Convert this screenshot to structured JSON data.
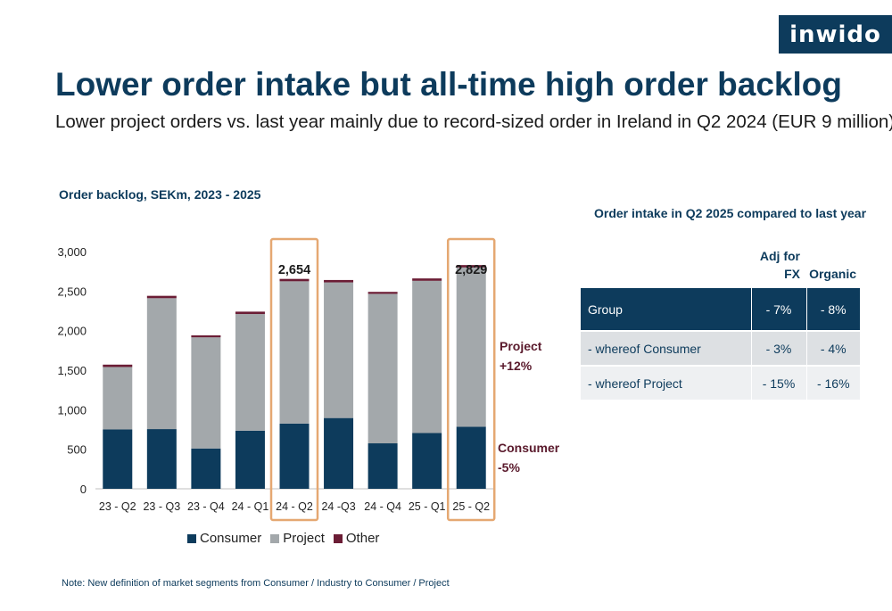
{
  "header": {
    "brand": "inwido",
    "title": "Lower order intake but all-time high order backlog",
    "subtitle": "Lower project orders vs. last year mainly due to record-sized order in Ireland in Q2 2024 (EUR 9 million)"
  },
  "colors": {
    "navy": "#0d3b5c",
    "project_gray": "#a3a8ab",
    "other_maroon": "#6b1d35",
    "highlight_orange": "#e5a872",
    "table_header": "#0d3b5c",
    "table_row_1": "#dde0e3",
    "table_row_2": "#eef0f2"
  },
  "chart_data": {
    "type": "bar",
    "stacked": true,
    "title": "Order backlog, SEKm, 2023 - 2025",
    "categories": [
      "23 - Q2",
      "23 - Q3",
      "23 - Q4",
      "24 - Q1",
      "24 - Q2",
      "24 -Q3",
      "24 - Q4",
      "25 - Q1",
      "25 - Q2"
    ],
    "series": [
      {
        "name": "Consumer",
        "color": "#0d3b5c",
        "values": [
          750,
          755,
          510,
          735,
          825,
          895,
          575,
          705,
          785
        ]
      },
      {
        "name": "Project",
        "color": "#a3a8ab",
        "values": [
          790,
          1655,
          1405,
          1475,
          1799,
          1715,
          1890,
          1925,
          2014
        ]
      },
      {
        "name": "Other",
        "color": "#6b1d35",
        "values": [
          30,
          30,
          25,
          30,
          30,
          30,
          25,
          30,
          30
        ]
      }
    ],
    "ylim": [
      0,
      3000
    ],
    "yticks": [
      0,
      500,
      1000,
      1500,
      2000,
      2500,
      3000
    ],
    "ytick_labels": [
      "0",
      "500",
      "1,000",
      "1,500",
      "2,000",
      "2,500",
      "3,000"
    ],
    "highlighted": [
      {
        "category": "24 - Q2",
        "label": "2,654"
      },
      {
        "category": "25 - Q2",
        "label": "2,829"
      }
    ],
    "annotations": [
      {
        "lines": [
          "Project",
          "+12%"
        ]
      },
      {
        "lines": [
          "Consumer",
          "-5%"
        ]
      }
    ],
    "legend_position": "bottom",
    "grid": false
  },
  "table": {
    "title": "Order intake in Q2 2025 compared to last year",
    "col1_header_line1": "Adj for",
    "col1_header_line2": "FX",
    "col2_header": "Organic",
    "rows": [
      {
        "label": "Group",
        "adj_fx": "- 7%",
        "organic": "- 8%"
      },
      {
        "label": "- whereof Consumer",
        "adj_fx": "- 3%",
        "organic": "- 4%"
      },
      {
        "label": "- whereof Project",
        "adj_fx": "- 15%",
        "organic": "- 16%"
      }
    ]
  },
  "note": "Note: New definition of market segments from Consumer / Industry to Consumer / Project"
}
